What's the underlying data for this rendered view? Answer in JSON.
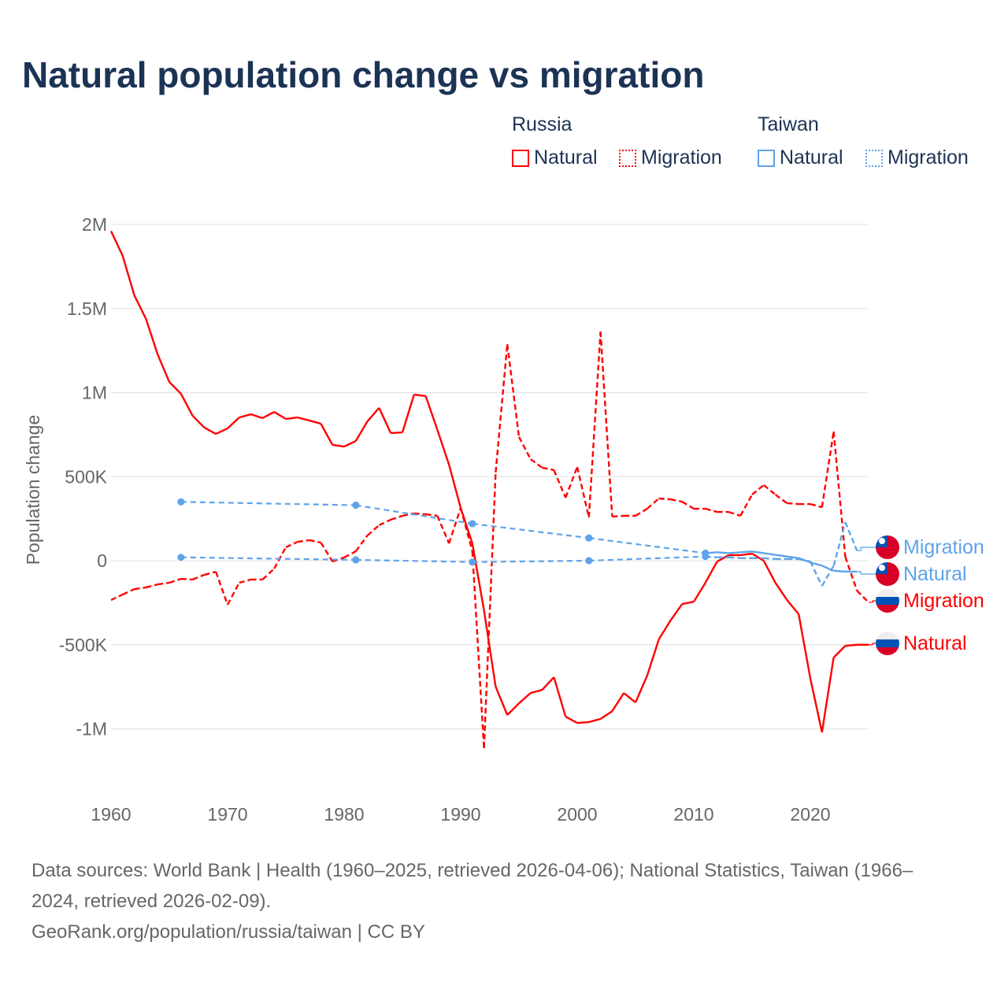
{
  "title": "Natural population change vs migration",
  "legend": {
    "groups": [
      {
        "label": "Russia",
        "items": [
          {
            "label": "Natural",
            "style": "solid",
            "color": "#ff0000"
          },
          {
            "label": "Migration",
            "style": "dotted",
            "color": "#ff0000"
          }
        ]
      },
      {
        "label": "Taiwan",
        "items": [
          {
            "label": "Natural",
            "style": "solid",
            "color": "#5ea3ea"
          },
          {
            "label": "Migration",
            "style": "dotted",
            "color": "#5ea3ea"
          }
        ]
      }
    ]
  },
  "footer": {
    "line1": "Data sources: World Bank | Health (1960–2025, retrieved 2026-04-06); National Statistics, Taiwan (1966–",
    "line2": "2024, retrieved 2026-02-09).",
    "line3": "GeoRank.org/population/russia/taiwan | CC BY"
  },
  "chart_data": {
    "type": "line",
    "title": "Natural population change vs migration",
    "xlabel": "",
    "ylabel": "Population change",
    "xlim": [
      1960,
      2025
    ],
    "ylim": [
      -1250000,
      2000000
    ],
    "xticks": [
      1960,
      1970,
      1980,
      1990,
      2000,
      2010,
      2020
    ],
    "xtick_labels": [
      "1960",
      "1970",
      "1980",
      "1990",
      "2000",
      "2010",
      "2020"
    ],
    "yticks": [
      2000000,
      1500000,
      1000000,
      500000,
      0,
      -500000,
      -1000000
    ],
    "ytick_labels": [
      "2M",
      "1.5M",
      "1M",
      "500K",
      "0",
      "-500K",
      "-1M"
    ],
    "grid": true,
    "series": [
      {
        "name": "Russia Natural",
        "end_label": "Natural",
        "flag": "russia",
        "color": "#ff0000",
        "dash": false,
        "x": [
          1960,
          1961,
          1962,
          1963,
          1964,
          1965,
          1966,
          1967,
          1968,
          1969,
          1970,
          1971,
          1972,
          1973,
          1974,
          1975,
          1976,
          1977,
          1978,
          1979,
          1980,
          1981,
          1982,
          1983,
          1984,
          1985,
          1986,
          1987,
          1988,
          1989,
          1990,
          1991,
          1992,
          1993,
          1994,
          1995,
          1996,
          1997,
          1998,
          1999,
          2000,
          2001,
          2002,
          2003,
          2004,
          2005,
          2006,
          2007,
          2008,
          2009,
          2010,
          2011,
          2012,
          2013,
          2014,
          2015,
          2016,
          2017,
          2018,
          2019,
          2020,
          2021,
          2022,
          2023,
          2024,
          2025
        ],
        "y": [
          1960000,
          1813000,
          1578000,
          1438000,
          1227000,
          1063000,
          993000,
          862000,
          792000,
          754000,
          787000,
          852000,
          871000,
          848000,
          885000,
          843000,
          852000,
          834000,
          815000,
          689000,
          679000,
          712000,
          829000,
          909000,
          759000,
          763000,
          988000,
          979000,
          778000,
          571000,
          314000,
          103000,
          -295000,
          -749000,
          -918000,
          -848000,
          -787000,
          -768000,
          -693000,
          -927000,
          -965000,
          -960000,
          -941000,
          -895000,
          -787000,
          -843000,
          -684000,
          -468000,
          -356000,
          -258000,
          -244000,
          -131000,
          -5000,
          33000,
          33000,
          42000,
          0,
          -131000,
          -234000,
          -318000,
          -700000,
          -1021000,
          -576000,
          -506000,
          -500000,
          -500000
        ]
      },
      {
        "name": "Russia Migration",
        "end_label": "Migration",
        "flag": "russia",
        "color": "#ff0000",
        "dash": true,
        "x": [
          1960,
          1961,
          1962,
          1963,
          1964,
          1965,
          1966,
          1967,
          1968,
          1969,
          1970,
          1971,
          1972,
          1973,
          1974,
          1975,
          1976,
          1977,
          1978,
          1979,
          1980,
          1981,
          1982,
          1983,
          1984,
          1985,
          1986,
          1987,
          1988,
          1989,
          1990,
          1991,
          1992,
          1993,
          1994,
          1995,
          1996,
          1997,
          1998,
          1999,
          2000,
          2001,
          2002,
          2003,
          2004,
          2005,
          2006,
          2007,
          2008,
          2009,
          2010,
          2011,
          2012,
          2013,
          2014,
          2015,
          2016,
          2017,
          2018,
          2019,
          2020,
          2021,
          2022,
          2023,
          2024,
          2025
        ],
        "y": [
          -234000,
          -201000,
          -169000,
          -159000,
          -141000,
          -131000,
          -108000,
          -112000,
          -84000,
          -66000,
          -262000,
          -131000,
          -112000,
          -112000,
          -47000,
          80000,
          112000,
          122000,
          108000,
          -5000,
          19000,
          56000,
          150000,
          211000,
          244000,
          267000,
          281000,
          276000,
          267000,
          103000,
          314000,
          56000,
          -1115000,
          525000,
          1288000,
          736000,
          604000,
          553000,
          539000,
          375000,
          557000,
          258000,
          1363000,
          262000,
          267000,
          267000,
          309000,
          370000,
          365000,
          351000,
          309000,
          309000,
          290000,
          290000,
          267000,
          393000,
          450000,
          393000,
          342000,
          337000,
          337000,
          318000,
          768000,
          23000,
          -178000,
          -248000
        ]
      },
      {
        "name": "Taiwan Natural",
        "end_label": "Natural",
        "flag": "taiwan",
        "color": "#5ea3ea",
        "dash": false,
        "x": [
          1966,
          1981,
          1991,
          2001,
          2011,
          2012,
          2013,
          2014,
          2015,
          2016,
          2017,
          2018,
          2019,
          2020,
          2021,
          2022,
          2023,
          2024
        ],
        "y": [
          350000,
          330000,
          220000,
          135000,
          45000,
          50000,
          45000,
          50000,
          55000,
          45000,
          35000,
          25000,
          15000,
          -10000,
          -30000,
          -60000,
          -65000,
          -65000
        ]
      },
      {
        "name": "Taiwan Migration",
        "end_label": "Migration",
        "flag": "taiwan",
        "color": "#5ea3ea",
        "dash": true,
        "x": [
          1966,
          1981,
          1991,
          2001,
          2011,
          2012,
          2013,
          2014,
          2015,
          2016,
          2017,
          2018,
          2019,
          2020,
          2021,
          2022,
          2023,
          2024
        ],
        "y": [
          20000,
          5000,
          -8000,
          0,
          25000,
          20000,
          20000,
          15000,
          15000,
          15000,
          10000,
          10000,
          10000,
          -5000,
          -150000,
          -30000,
          230000,
          60000
        ]
      }
    ]
  }
}
